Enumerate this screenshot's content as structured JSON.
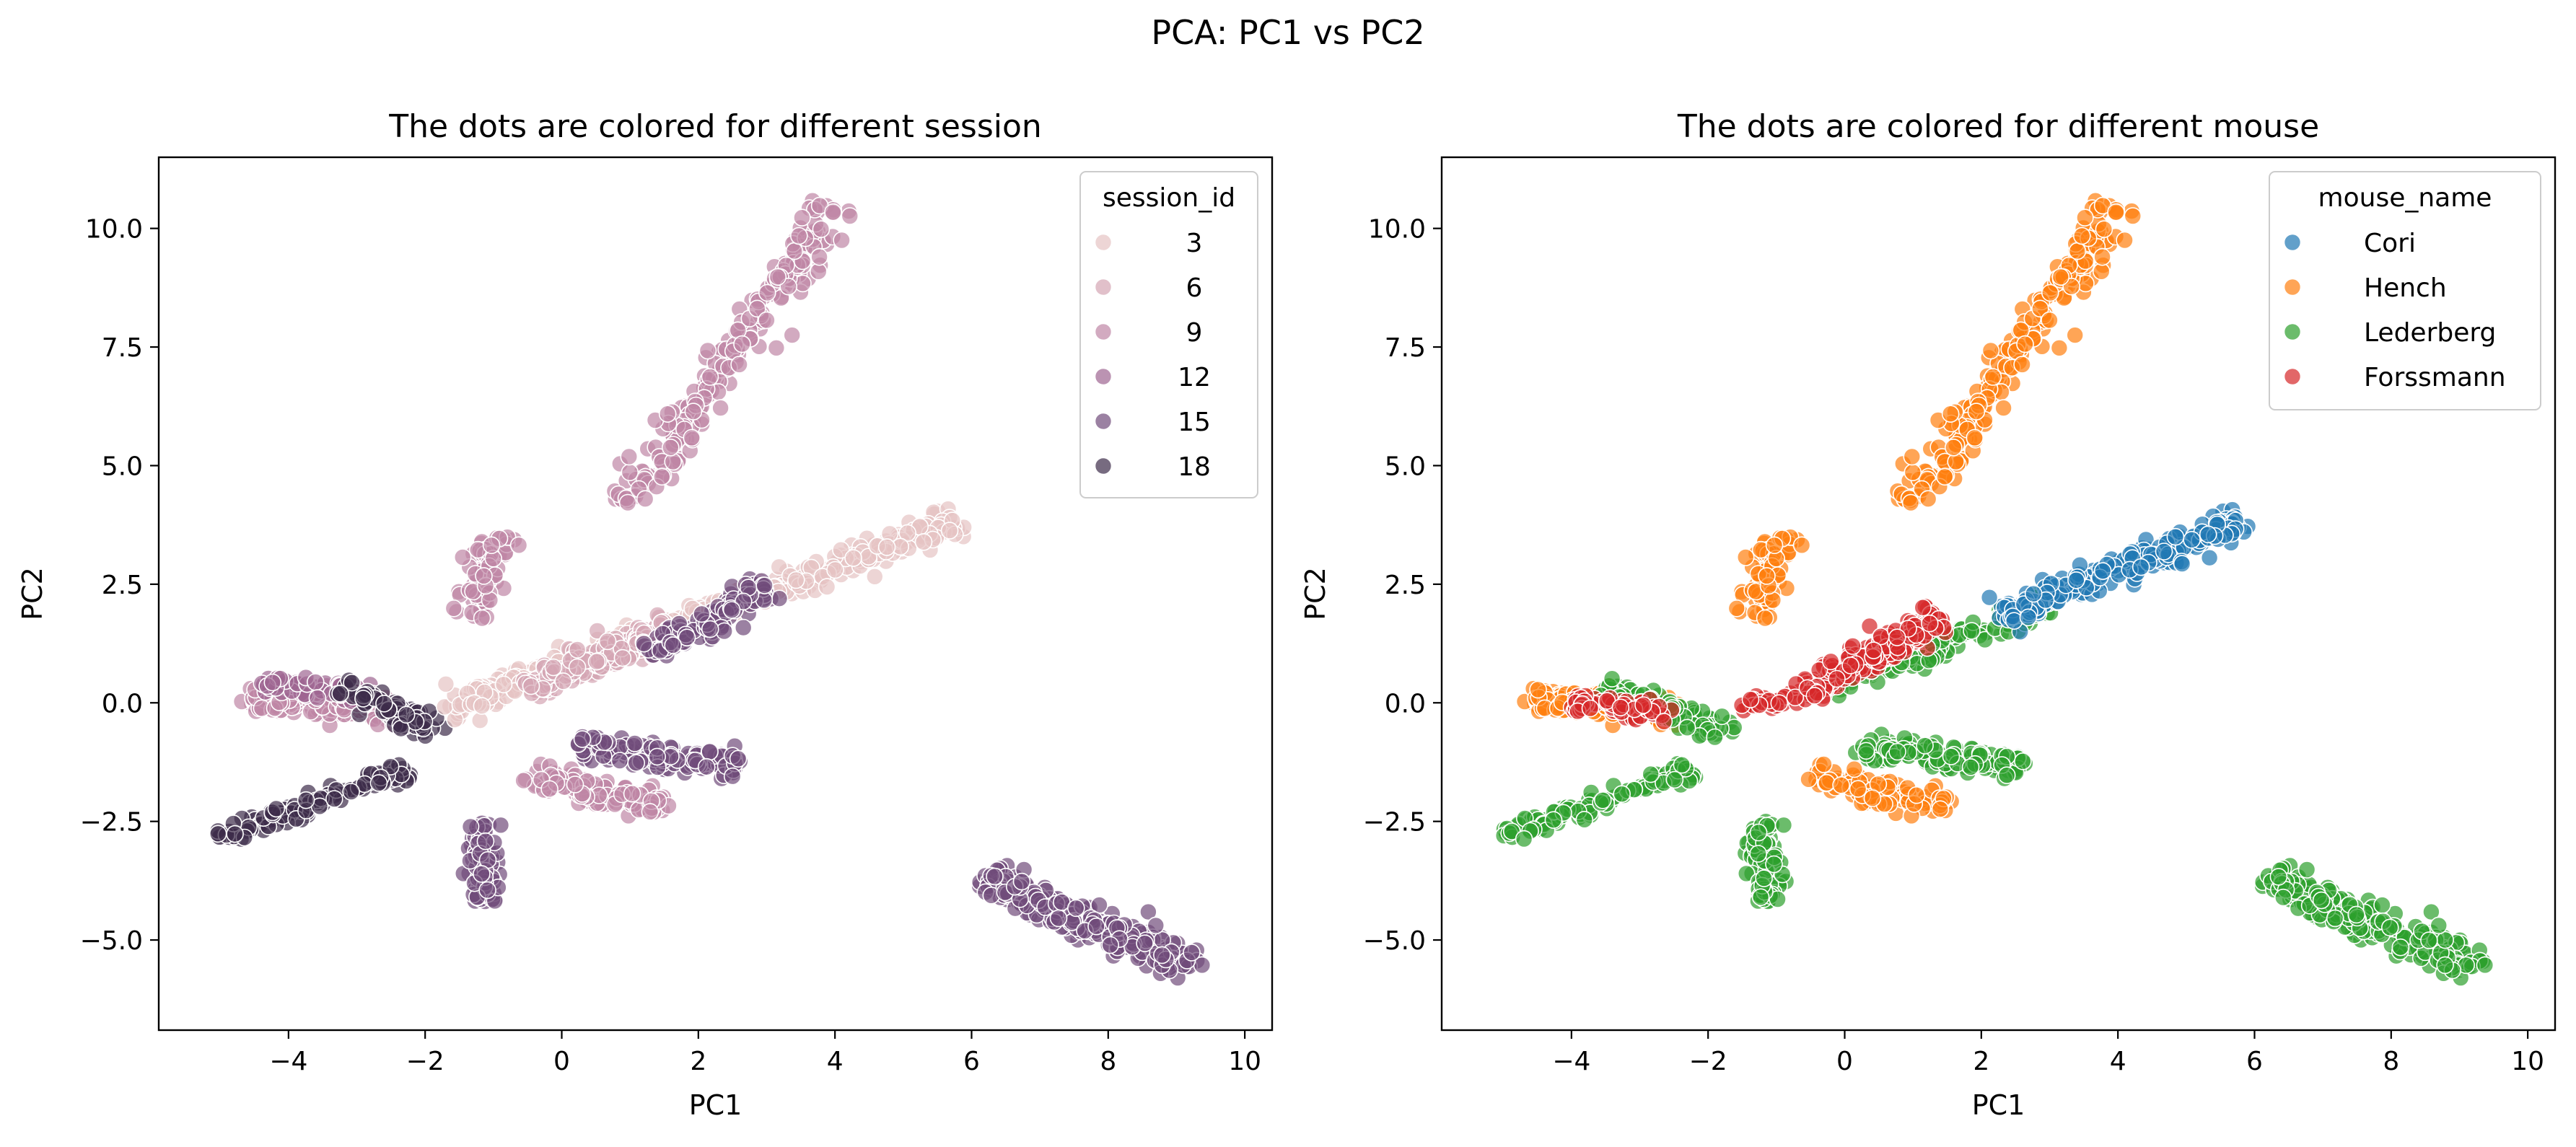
{
  "figure": {
    "suptitle": "PCA: PC1 vs PC2"
  },
  "chart_data": [
    {
      "type": "scatter",
      "title": "The dots are colored for different session",
      "xlabel": "PC1",
      "ylabel": "PC2",
      "xlim": [
        -5.9,
        10.4
      ],
      "ylim": [
        -6.9,
        11.5
      ],
      "xticks": [
        -4,
        -2,
        0,
        2,
        4,
        6,
        8,
        10
      ],
      "yticks": [
        -5.0,
        -2.5,
        0.0,
        2.5,
        5.0,
        7.5,
        10.0
      ],
      "grid": false,
      "legend": {
        "title": "session_id",
        "placement": "top-right",
        "entries": [
          {
            "label": "3",
            "color": "#e6c3c3"
          },
          {
            "label": "6",
            "color": "#d4a5b4"
          },
          {
            "label": "9",
            "color": "#bf86a5"
          },
          {
            "label": "12",
            "color": "#9e6591"
          },
          {
            "label": "15",
            "color": "#704b7a"
          },
          {
            "label": "18",
            "color": "#3d2c4a"
          }
        ]
      },
      "clusters": [
        {
          "x0": 1.0,
          "y0": 4.2,
          "x1": 4.0,
          "y1": 10.5,
          "w": 0.35,
          "n": 230,
          "color": "#bf86a5"
        },
        {
          "x0": -1.3,
          "y0": 1.8,
          "x1": -0.95,
          "y1": 3.5,
          "w": 0.28,
          "n": 70,
          "color": "#bf86a5"
        },
        {
          "x0": -4.6,
          "y0": 0.1,
          "x1": -2.4,
          "y1": -0.15,
          "w": 0.3,
          "n": 160,
          "color": "#bf86a5"
        },
        {
          "x0": -4.4,
          "y0": 0.4,
          "x1": -2.8,
          "y1": 0.2,
          "w": 0.25,
          "n": 50,
          "color": "#9e6591"
        },
        {
          "x0": -3.2,
          "y0": 0.3,
          "x1": -1.8,
          "y1": -0.6,
          "w": 0.22,
          "n": 70,
          "color": "#3d2c4a"
        },
        {
          "x0": -1.7,
          "y0": -0.1,
          "x1": 5.8,
          "y1": 3.8,
          "w": 0.3,
          "n": 380,
          "color": "#e6c3c3"
        },
        {
          "x0": -0.5,
          "y0": 0.3,
          "x1": 1.6,
          "y1": 1.6,
          "w": 0.3,
          "n": 170,
          "color": "#d4a5b4"
        },
        {
          "x0": 1.3,
          "y0": 1.0,
          "x1": 3.0,
          "y1": 2.4,
          "w": 0.3,
          "n": 110,
          "color": "#704b7a"
        },
        {
          "x0": -0.5,
          "y0": -1.5,
          "x1": 1.5,
          "y1": -2.2,
          "w": 0.28,
          "n": 110,
          "color": "#bf86a5"
        },
        {
          "x0": 0.2,
          "y0": -0.9,
          "x1": 2.6,
          "y1": -1.3,
          "w": 0.3,
          "n": 130,
          "color": "#704b7a"
        },
        {
          "x0": -5.0,
          "y0": -2.8,
          "x1": -2.2,
          "y1": -1.4,
          "w": 0.18,
          "n": 110,
          "color": "#3d2c4a"
        },
        {
          "x0": -1.2,
          "y0": -2.5,
          "x1": -1.1,
          "y1": -4.2,
          "w": 0.22,
          "n": 90,
          "color": "#704b7a"
        },
        {
          "x0": 6.2,
          "y0": -3.7,
          "x1": 9.3,
          "y1": -5.6,
          "w": 0.38,
          "n": 260,
          "color": "#704b7a"
        }
      ]
    },
    {
      "type": "scatter",
      "title": "The dots are colored for different mouse",
      "xlabel": "PC1",
      "ylabel": "PC2",
      "xlim": [
        -5.9,
        10.4
      ],
      "ylim": [
        -6.9,
        11.5
      ],
      "xticks": [
        -4,
        -2,
        0,
        2,
        4,
        6,
        8,
        10
      ],
      "yticks": [
        -5.0,
        -2.5,
        0.0,
        2.5,
        5.0,
        7.5,
        10.0
      ],
      "grid": false,
      "legend": {
        "title": "mouse_name",
        "placement": "top-right",
        "entries": [
          {
            "label": "Cori",
            "color": "#1f77b4"
          },
          {
            "label": "Hench",
            "color": "#ff7f0e"
          },
          {
            "label": "Lederberg",
            "color": "#2ca02c"
          },
          {
            "label": "Forssmann",
            "color": "#d62728"
          }
        ]
      },
      "clusters": [
        {
          "x0": 1.0,
          "y0": 4.2,
          "x1": 4.0,
          "y1": 10.5,
          "w": 0.35,
          "n": 230,
          "color": "#ff7f0e"
        },
        {
          "x0": -1.3,
          "y0": 1.8,
          "x1": -0.95,
          "y1": 3.5,
          "w": 0.28,
          "n": 70,
          "color": "#ff7f0e"
        },
        {
          "x0": -4.6,
          "y0": 0.1,
          "x1": -2.4,
          "y1": -0.15,
          "w": 0.3,
          "n": 160,
          "color": "#ff7f0e"
        },
        {
          "x0": -3.5,
          "y0": 0.3,
          "x1": -1.7,
          "y1": -0.6,
          "w": 0.25,
          "n": 90,
          "color": "#2ca02c"
        },
        {
          "x0": -4.0,
          "y0": 0.0,
          "x1": -2.6,
          "y1": -0.2,
          "w": 0.18,
          "n": 70,
          "color": "#d62728"
        },
        {
          "x0": -0.2,
          "y0": 0.4,
          "x1": 3.0,
          "y1": 2.0,
          "w": 0.28,
          "n": 130,
          "color": "#2ca02c"
        },
        {
          "x0": 2.2,
          "y0": 1.8,
          "x1": 5.8,
          "y1": 3.8,
          "w": 0.28,
          "n": 220,
          "color": "#1f77b4"
        },
        {
          "x0": -0.5,
          "y0": 0.3,
          "x1": 1.4,
          "y1": 1.8,
          "w": 0.3,
          "n": 180,
          "color": "#d62728"
        },
        {
          "x0": -1.6,
          "y0": -0.1,
          "x1": -0.4,
          "y1": 0.2,
          "w": 0.15,
          "n": 40,
          "color": "#d62728"
        },
        {
          "x0": -0.5,
          "y0": -1.5,
          "x1": 1.5,
          "y1": -2.2,
          "w": 0.28,
          "n": 110,
          "color": "#ff7f0e"
        },
        {
          "x0": 0.2,
          "y0": -0.9,
          "x1": 2.6,
          "y1": -1.3,
          "w": 0.3,
          "n": 130,
          "color": "#2ca02c"
        },
        {
          "x0": -5.0,
          "y0": -2.8,
          "x1": -2.2,
          "y1": -1.4,
          "w": 0.18,
          "n": 110,
          "color": "#2ca02c"
        },
        {
          "x0": -1.2,
          "y0": -2.5,
          "x1": -1.1,
          "y1": -4.2,
          "w": 0.22,
          "n": 90,
          "color": "#2ca02c"
        },
        {
          "x0": 6.2,
          "y0": -3.7,
          "x1": 9.3,
          "y1": -5.6,
          "w": 0.38,
          "n": 260,
          "color": "#2ca02c"
        }
      ]
    }
  ]
}
